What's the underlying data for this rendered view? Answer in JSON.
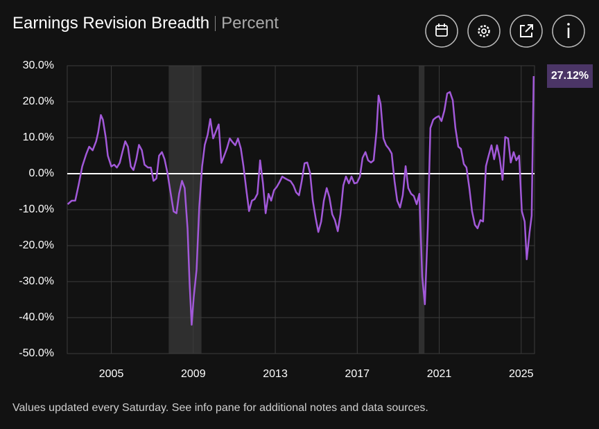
{
  "chart_data": {
    "type": "line",
    "title": "Earnings Revision Breadth",
    "subtitle": "Percent",
    "note": "Values updated every Saturday. See info pane for additional notes and data sources.",
    "color": "#a259d9",
    "grid": true,
    "xlim": [
      2002.85,
      2025.65
    ],
    "xticks": [
      2005,
      2009,
      2013,
      2017,
      2021,
      2025
    ],
    "ylim": [
      -50,
      30
    ],
    "yticks": [
      {
        "value": 30,
        "label": "30.0%"
      },
      {
        "value": 20,
        "label": "20.0%"
      },
      {
        "value": 10,
        "label": "10.0%"
      },
      {
        "value": 0,
        "label": "0.0%"
      },
      {
        "value": -10,
        "label": "-10.0%"
      },
      {
        "value": -20,
        "label": "-20.0%"
      },
      {
        "value": -30,
        "label": "-30.0%"
      },
      {
        "value": -40,
        "label": "-40.0%"
      },
      {
        "value": -50,
        "label": "-50.0%"
      }
    ],
    "recessions": [
      [
        2007.8,
        2009.4
      ],
      [
        2020.0,
        2020.28
      ]
    ],
    "last_label": {
      "value": 27.12,
      "label": "27.12%"
    },
    "x": [
      2002.87,
      2003.07,
      2003.24,
      2003.41,
      2003.58,
      2003.78,
      2003.92,
      2004.09,
      2004.26,
      2004.36,
      2004.49,
      2004.59,
      2004.73,
      2004.83,
      2005.0,
      2005.14,
      2005.27,
      2005.41,
      2005.54,
      2005.68,
      2005.81,
      2005.95,
      2006.08,
      2006.22,
      2006.35,
      2006.49,
      2006.62,
      2006.79,
      2006.93,
      2007.06,
      2007.2,
      2007.33,
      2007.47,
      2007.6,
      2007.74,
      2007.87,
      2008.04,
      2008.18,
      2008.31,
      2008.45,
      2008.58,
      2008.72,
      2008.82,
      2008.92,
      2009.02,
      2009.16,
      2009.29,
      2009.43,
      2009.56,
      2009.7,
      2009.83,
      2009.97,
      2010.1,
      2010.24,
      2010.37,
      2010.51,
      2010.64,
      2010.78,
      2010.91,
      2011.05,
      2011.18,
      2011.32,
      2011.45,
      2011.59,
      2011.72,
      2011.86,
      2011.99,
      2012.13,
      2012.26,
      2012.4,
      2012.53,
      2012.67,
      2012.8,
      2012.94,
      2013.07,
      2013.21,
      2013.34,
      2013.48,
      2013.61,
      2013.75,
      2013.89,
      2014.02,
      2014.16,
      2014.29,
      2014.43,
      2014.56,
      2014.7,
      2014.83,
      2014.97,
      2015.1,
      2015.24,
      2015.37,
      2015.51,
      2015.64,
      2015.78,
      2015.91,
      2016.05,
      2016.18,
      2016.32,
      2016.45,
      2016.59,
      2016.72,
      2016.86,
      2016.99,
      2017.13,
      2017.26,
      2017.4,
      2017.53,
      2017.67,
      2017.8,
      2017.94,
      2018.04,
      2018.14,
      2018.28,
      2018.41,
      2018.55,
      2018.68,
      2018.82,
      2018.95,
      2019.09,
      2019.22,
      2019.36,
      2019.49,
      2019.63,
      2019.76,
      2019.9,
      2020.03,
      2020.17,
      2020.3,
      2020.44,
      2020.57,
      2020.71,
      2020.84,
      2020.98,
      2021.11,
      2021.25,
      2021.39,
      2021.52,
      2021.66,
      2021.79,
      2021.93,
      2022.06,
      2022.2,
      2022.33,
      2022.47,
      2022.6,
      2022.74,
      2022.87,
      2023.01,
      2023.14,
      2023.28,
      2023.41,
      2023.55,
      2023.68,
      2023.82,
      2023.95,
      2024.09,
      2024.22,
      2024.36,
      2024.49,
      2024.63,
      2024.76,
      2024.9,
      2025.03,
      2025.17,
      2025.27,
      2025.41,
      2025.51,
      2025.61
    ],
    "values": [
      -8.5,
      -7.5,
      -7.5,
      -3,
      2,
      5.5,
      7.5,
      6.5,
      9,
      11.5,
      16.3,
      15,
      10,
      5,
      2,
      2.5,
      1.7,
      3,
      6,
      9,
      7.5,
      2,
      1,
      4,
      8,
      6.5,
      2.5,
      1.7,
      1.7,
      -2,
      -1.3,
      5,
      6,
      4,
      0.2,
      -4.5,
      -10.5,
      -11,
      -5.5,
      -2,
      -4,
      -15.2,
      -30.5,
      -42,
      -34.4,
      -26.7,
      -9.4,
      2,
      8,
      10.8,
      15.2,
      9.8,
      11.7,
      13.7,
      3,
      5,
      7,
      9.8,
      8.8,
      7.9,
      9.8,
      7,
      2,
      -4.6,
      -10.4,
      -7.5,
      -7.1,
      -5.6,
      3.7,
      -2.7,
      -11,
      -5.6,
      -7.5,
      -4.6,
      -3.7,
      -2.3,
      -0.8,
      -1.3,
      -1.7,
      -2.1,
      -3.3,
      -5.2,
      -6,
      -2.1,
      2.9,
      3.1,
      0.2,
      -7.5,
      -12.3,
      -16.2,
      -13.3,
      -7.5,
      -4,
      -6.5,
      -11.3,
      -12.9,
      -16,
      -11.3,
      -3.3,
      -0.8,
      -2.7,
      -0.8,
      -2.7,
      -2.5,
      -0.8,
      4.4,
      6,
      3.7,
      3.1,
      3.7,
      11.7,
      21.7,
      19.4,
      9.8,
      7.9,
      6.9,
      5.6,
      -2.1,
      -7.5,
      -9.4,
      -6,
      2.1,
      -4,
      -5.6,
      -6.2,
      -8.5,
      -5.6,
      -28.7,
      -36.3,
      -15.2,
      12.7,
      15,
      15.6,
      16,
      14.6,
      17.5,
      22.3,
      22.7,
      20.4,
      12.7,
      7.5,
      6.9,
      2.7,
      1.7,
      -4,
      -10.4,
      -14.2,
      -15.2,
      -12.9,
      -13.3,
      2.1,
      5,
      7.9,
      4,
      7.9,
      4.4,
      -1.7,
      10.2,
      9.8,
      3.1,
      6,
      3.7,
      5,
      -10.4,
      -13.3,
      -23.8,
      -16.2,
      -11.7,
      27.12
    ]
  }
}
